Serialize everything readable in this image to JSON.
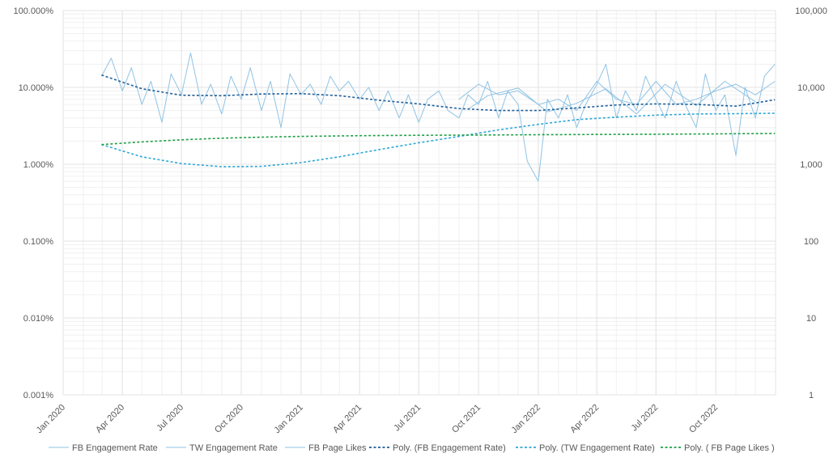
{
  "chart_data": {
    "type": "line",
    "x_axis": {
      "type": "date",
      "range": [
        "2020-01-01",
        "2023-01-01"
      ],
      "tick_labels": [
        "Jan 2020",
        "Apr 2020",
        "Jul 2020",
        "Oct 2020",
        "Jan 2021",
        "Apr 2021",
        "Jul 2021",
        "Oct 2021",
        "Jan 2022",
        "Apr 2022",
        "Jul 2022",
        "Oct 2022"
      ],
      "tick_dates": [
        "2020-01-01",
        "2020-04-01",
        "2020-07-01",
        "2020-10-01",
        "2021-01-01",
        "2021-04-01",
        "2021-07-01",
        "2021-10-01",
        "2022-01-01",
        "2022-04-01",
        "2022-07-01",
        "2022-10-01"
      ],
      "label_rotation": "-45deg"
    },
    "y_axis_left": {
      "scale": "log",
      "unit": "percent",
      "range": [
        0.001,
        100
      ],
      "tick_labels": [
        "100.000%",
        "10.000%",
        "1.000%",
        "0.100%",
        "0.010%",
        "0.001%"
      ],
      "tick_values": [
        100,
        10,
        1,
        0.1,
        0.01,
        0.001
      ]
    },
    "y_axis_right": {
      "scale": "log",
      "range": [
        1,
        100000
      ],
      "tick_labels": [
        "100,000",
        "10,000",
        "1,000",
        "100",
        "10",
        "1"
      ],
      "tick_values": [
        100000,
        10000,
        1000,
        100,
        10,
        1
      ]
    },
    "grid": true,
    "legend_position": "bottom",
    "colors": {
      "raw_line": "#8fc3e4",
      "fb_poly": "#1f5f99",
      "tw_poly": "#2ea7d6",
      "likes_poly": "#1fa046",
      "grid": "#e3e3e3"
    },
    "series": [
      {
        "name": "FB Engagement Rate",
        "axis": "left",
        "style": "raw",
        "x": [
          "2020-02-29",
          "2020-03-15",
          "2020-04-01",
          "2020-04-15",
          "2020-05-01",
          "2020-05-15",
          "2020-06-01",
          "2020-06-15",
          "2020-07-01",
          "2020-07-15",
          "2020-08-01",
          "2020-08-15",
          "2020-09-01",
          "2020-09-15",
          "2020-10-01",
          "2020-10-15",
          "2020-11-01",
          "2020-11-15",
          "2020-12-01",
          "2020-12-15",
          "2021-01-01",
          "2021-01-15",
          "2021-02-01",
          "2021-02-15",
          "2021-03-01",
          "2021-03-15",
          "2021-04-01",
          "2021-04-15",
          "2021-05-01",
          "2021-05-15",
          "2021-06-01",
          "2021-06-15",
          "2021-07-01",
          "2021-07-15",
          "2021-08-01",
          "2021-08-15",
          "2021-09-01",
          "2021-09-15",
          "2021-10-01",
          "2021-10-15",
          "2021-11-01",
          "2021-11-15",
          "2021-12-01",
          "2021-12-15",
          "2022-01-01",
          "2022-01-15",
          "2022-02-01",
          "2022-02-15",
          "2022-03-01",
          "2022-03-15",
          "2022-04-01",
          "2022-04-15",
          "2022-05-01",
          "2022-05-15",
          "2022-06-01",
          "2022-06-15",
          "2022-07-01",
          "2022-07-15",
          "2022-08-01",
          "2022-08-15",
          "2022-09-01",
          "2022-09-15",
          "2022-10-01",
          "2022-10-15",
          "2022-11-01",
          "2022-11-15",
          "2022-12-01",
          "2022-12-15",
          "2022-12-31"
        ],
        "y_percent": [
          14,
          24,
          9,
          18,
          6,
          12,
          3.5,
          15,
          8,
          28,
          6,
          11,
          4.5,
          14,
          7,
          18,
          5,
          12,
          3,
          15,
          8,
          11,
          6,
          14,
          9,
          12,
          7,
          10,
          5,
          9,
          4,
          8,
          3.5,
          7,
          9,
          5,
          4,
          8,
          6,
          12,
          4,
          9,
          6,
          1.1,
          0.6,
          7,
          4,
          8,
          3,
          6,
          11,
          20,
          4,
          9,
          5,
          14,
          7,
          4,
          12,
          6,
          3,
          15,
          5,
          8,
          1.3,
          10,
          4,
          14,
          20
        ]
      },
      {
        "name": "TW Engagement Rate",
        "axis": "left",
        "style": "raw",
        "x": [
          "2021-09-01",
          "2021-10-01",
          "2021-11-01",
          "2021-12-01",
          "2022-01-01",
          "2022-02-01",
          "2022-03-01",
          "2022-04-01",
          "2022-05-01",
          "2022-06-01",
          "2022-07-01",
          "2022-08-01",
          "2022-09-01",
          "2022-10-01",
          "2022-11-01",
          "2022-12-01",
          "2022-12-31"
        ],
        "y_percent": [
          7,
          11,
          8,
          9,
          6,
          7,
          5,
          12,
          7,
          6,
          12,
          6,
          7,
          9,
          11,
          8,
          12
        ]
      },
      {
        "name": "FB Page Likes",
        "axis": "right",
        "style": "raw",
        "x": [
          "2021-09-15",
          "2021-10-15",
          "2021-12-01",
          "2022-01-15",
          "2022-03-01",
          "2022-04-15",
          "2022-06-01",
          "2022-07-15",
          "2022-09-01",
          "2022-10-15",
          "2022-12-01"
        ],
        "y": [
          5200,
          7800,
          9800,
          4800,
          6200,
          9600,
          4500,
          11000,
          5800,
          12000,
          6500
        ]
      },
      {
        "name": "Poly. (FB Engagement Rate)",
        "axis": "left",
        "style": "dashed",
        "x": [
          "2020-02-29",
          "2020-05-01",
          "2020-07-01",
          "2020-09-01",
          "2020-11-01",
          "2021-01-01",
          "2021-03-01",
          "2021-05-01",
          "2021-07-01",
          "2021-09-01",
          "2021-11-01",
          "2022-01-01",
          "2022-03-01",
          "2022-05-01",
          "2022-07-01",
          "2022-09-01",
          "2022-11-01",
          "2022-12-31"
        ],
        "y_percent": [
          14.5,
          9.6,
          7.9,
          7.8,
          8.2,
          8.3,
          7.8,
          6.8,
          6.1,
          5.3,
          5.0,
          5.0,
          5.4,
          5.9,
          6.1,
          6.0,
          5.7,
          6.9
        ]
      },
      {
        "name": "Poly. (TW Engagement Rate)",
        "axis": "left",
        "style": "dashed",
        "x": [
          "2020-02-29",
          "2020-05-01",
          "2020-07-01",
          "2020-09-01",
          "2020-11-01",
          "2021-01-01",
          "2021-03-01",
          "2021-05-01",
          "2021-07-01",
          "2021-09-01",
          "2021-11-01",
          "2022-01-01",
          "2022-03-01",
          "2022-05-01",
          "2022-07-01",
          "2022-09-01",
          "2022-11-01",
          "2022-12-31"
        ],
        "y_percent": [
          1.8,
          1.25,
          1.02,
          0.93,
          0.94,
          1.05,
          1.25,
          1.55,
          1.9,
          2.3,
          2.8,
          3.3,
          3.8,
          4.1,
          4.35,
          4.5,
          4.55,
          4.6
        ]
      },
      {
        "name": "Poly. ( FB Page Likes )",
        "axis": "right",
        "style": "dashed",
        "x": [
          "2020-02-29",
          "2020-05-01",
          "2020-07-01",
          "2020-09-01",
          "2020-11-01",
          "2021-01-01",
          "2021-04-01",
          "2021-07-01",
          "2021-10-01",
          "2022-01-01",
          "2022-04-01",
          "2022-07-01",
          "2022-10-01",
          "2022-12-31"
        ],
        "y": [
          1800,
          1950,
          2080,
          2180,
          2250,
          2300,
          2350,
          2380,
          2400,
          2420,
          2440,
          2460,
          2480,
          2520
        ]
      }
    ],
    "legend": [
      {
        "label": "FB Engagement Rate",
        "swatch": "solid",
        "color": "#8fc3e4"
      },
      {
        "label": "TW Engagement Rate",
        "swatch": "solid",
        "color": "#8fc3e4"
      },
      {
        "label": "FB Page Likes",
        "swatch": "solid",
        "color": "#8fc3e4"
      },
      {
        "label": "Poly. (FB Engagement Rate)",
        "swatch": "dashed",
        "color": "#1f5f99"
      },
      {
        "label": "Poly. (TW Engagement Rate)",
        "swatch": "dashed",
        "color": "#2ea7d6"
      },
      {
        "label": "Poly. ( FB Page Likes )",
        "swatch": "dashed",
        "color": "#1fa046"
      }
    ]
  }
}
